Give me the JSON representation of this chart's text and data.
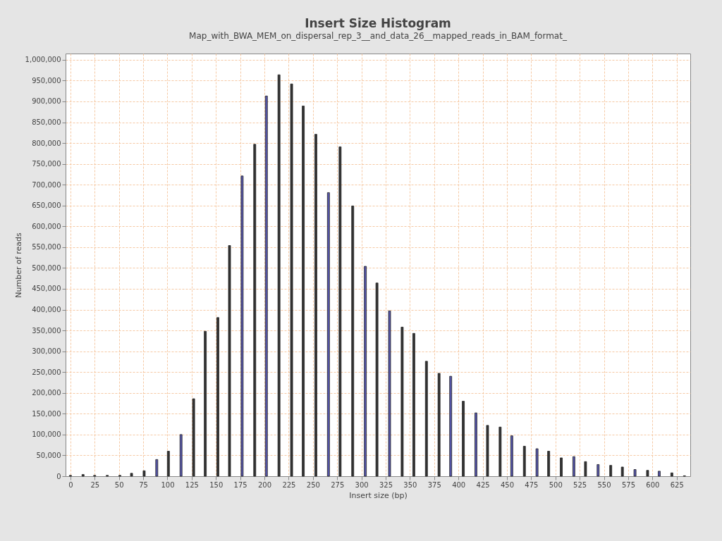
{
  "chart_data": {
    "type": "bar",
    "title": "Insert Size Histogram",
    "subtitle": "Map_with_BWA_MEM_on_dispersal_rep_3__and_data_26__mapped_reads_in_BAM_format_",
    "xlabel": "Insert size (bp)",
    "ylabel": "Number of reads",
    "x": [
      0,
      13,
      25,
      38,
      51,
      63,
      76,
      89,
      101,
      114,
      127,
      139,
      152,
      164,
      177,
      190,
      202,
      215,
      228,
      240,
      253,
      266,
      278,
      291,
      304,
      316,
      329,
      342,
      354,
      367,
      380,
      392,
      405,
      418,
      430,
      443,
      455,
      468,
      481,
      493,
      506,
      519,
      531,
      544,
      557,
      569,
      582,
      595,
      607,
      620,
      633
    ],
    "values": [
      2000,
      4000,
      2000,
      2000,
      2000,
      7000,
      13000,
      40000,
      60000,
      100000,
      186000,
      348000,
      381000,
      554000,
      721000,
      797000,
      913000,
      964000,
      942000,
      889000,
      821000,
      681000,
      791000,
      649000,
      504000,
      464000,
      397000,
      358000,
      343000,
      276000,
      247000,
      240000,
      180000,
      152000,
      122000,
      118000,
      97000,
      72000,
      66000,
      60000,
      44000,
      47000,
      35000,
      28000,
      26000,
      22000,
      16000,
      14000,
      12000,
      8000,
      1000
    ],
    "colors": [
      "#333333",
      "#333333",
      "#333333",
      "#333333",
      "#333333",
      "#333333",
      "#333333",
      "#5555aa",
      "#333333",
      "#5555aa",
      "#333333",
      "#333333",
      "#333333",
      "#333333",
      "#5555aa",
      "#333333",
      "#5555aa",
      "#333333",
      "#333333",
      "#333333",
      "#333333",
      "#5555aa",
      "#333333",
      "#333333",
      "#5555aa",
      "#333333",
      "#5555aa",
      "#333333",
      "#333333",
      "#333333",
      "#333333",
      "#5555aa",
      "#333333",
      "#5555aa",
      "#333333",
      "#333333",
      "#5555aa",
      "#333333",
      "#5555aa",
      "#333333",
      "#333333",
      "#5555aa",
      "#333333",
      "#5555aa",
      "#333333",
      "#333333",
      "#5555aa",
      "#333333",
      "#5555aa",
      "#333333",
      "#333333"
    ],
    "xlim": [
      -5,
      639
    ],
    "xticks": [
      0,
      25,
      50,
      75,
      100,
      125,
      150,
      175,
      200,
      225,
      250,
      275,
      300,
      325,
      350,
      375,
      400,
      425,
      450,
      475,
      500,
      525,
      550,
      575,
      600,
      625
    ],
    "ylim": [
      0,
      1015000
    ],
    "yticks": [
      0,
      {
        "value": 50000,
        "label": "50,000"
      },
      {
        "value": 100000,
        "label": "100,000"
      },
      {
        "value": 150000,
        "label": "150,000"
      },
      {
        "value": 200000,
        "label": "200,000"
      },
      {
        "value": 250000,
        "label": "250,000"
      },
      {
        "value": 300000,
        "label": "300,000"
      },
      {
        "value": 350000,
        "label": "350,000"
      },
      {
        "value": 400000,
        "label": "400,000"
      },
      {
        "value": 450000,
        "label": "450,000"
      },
      {
        "value": 500000,
        "label": "500,000"
      },
      {
        "value": 550000,
        "label": "550,000"
      },
      {
        "value": 600000,
        "label": "600,000"
      },
      {
        "value": 650000,
        "label": "650,000"
      },
      {
        "value": 700000,
        "label": "700,000"
      },
      {
        "value": 750000,
        "label": "750,000"
      },
      {
        "value": 800000,
        "label": "800,000"
      },
      {
        "value": 850000,
        "label": "850,000"
      },
      {
        "value": 900000,
        "label": "900,000"
      },
      {
        "value": 950000,
        "label": "950,000"
      },
      {
        "value": 1000000,
        "label": "1,000,000"
      }
    ],
    "grid": true
  }
}
